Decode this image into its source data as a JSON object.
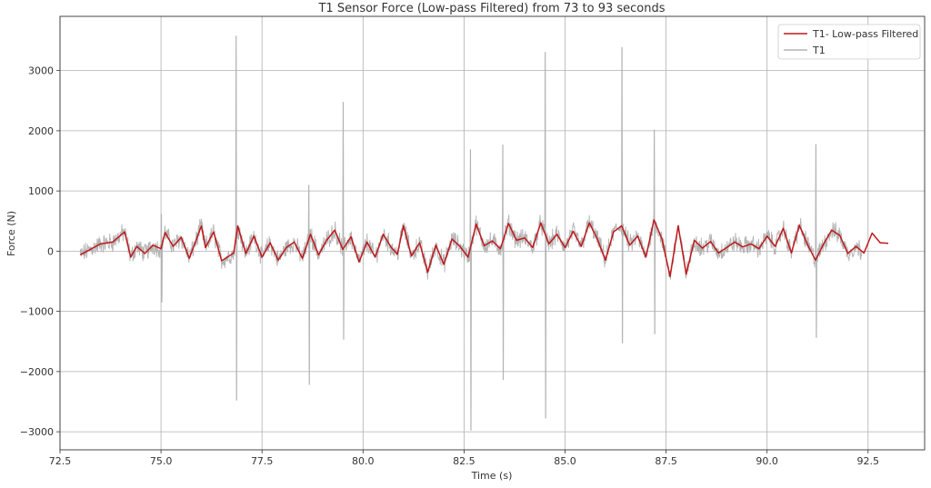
{
  "chart_data": {
    "type": "line",
    "title": "T1 Sensor Force (Low-pass Filtered) from 73 to 93 seconds",
    "xlabel": "Time (s)",
    "ylabel": "Force (N)",
    "xlim": [
      72.5,
      93.9
    ],
    "ylim": [
      -3300,
      3900
    ],
    "grid": true,
    "legend_position": "top-right",
    "x_ticks": [
      72.5,
      75.0,
      77.5,
      80.0,
      82.5,
      85.0,
      87.5,
      90.0,
      92.5
    ],
    "x_tick_labels": [
      "72.5",
      "75.0",
      "77.5",
      "80.0",
      "82.5",
      "85.0",
      "87.5",
      "90.0",
      "92.5"
    ],
    "y_ticks": [
      -3000,
      -2000,
      -1000,
      0,
      1000,
      2000,
      3000
    ],
    "y_tick_labels": [
      "−3000",
      "−2000",
      "−1000",
      "0",
      "1000",
      "2000",
      "3000"
    ],
    "series": [
      {
        "name": "T1- Low-pass Filtered",
        "color": "#c0181c",
        "x": [
          73.0,
          73.2,
          73.5,
          73.8,
          74.1,
          74.25,
          74.4,
          74.6,
          74.8,
          75.0,
          75.1,
          75.3,
          75.5,
          75.7,
          75.85,
          76.0,
          76.1,
          76.3,
          76.5,
          76.8,
          76.9,
          77.1,
          77.3,
          77.5,
          77.7,
          77.9,
          78.1,
          78.3,
          78.5,
          78.7,
          78.9,
          79.1,
          79.3,
          79.5,
          79.7,
          79.9,
          80.1,
          80.3,
          80.5,
          80.7,
          80.85,
          81.0,
          81.2,
          81.4,
          81.6,
          81.8,
          82.0,
          82.2,
          82.4,
          82.6,
          82.8,
          83.0,
          83.2,
          83.4,
          83.6,
          83.8,
          84.0,
          84.2,
          84.4,
          84.6,
          84.8,
          85.0,
          85.2,
          85.4,
          85.6,
          85.8,
          86.0,
          86.2,
          86.4,
          86.6,
          86.8,
          87.0,
          87.2,
          87.4,
          87.6,
          87.8,
          88.0,
          88.2,
          88.4,
          88.6,
          88.8,
          89.0,
          89.2,
          89.4,
          89.6,
          89.8,
          90.0,
          90.2,
          90.4,
          90.6,
          90.8,
          91.0,
          91.2,
          91.4,
          91.6,
          91.8,
          92.0,
          92.2,
          92.4,
          92.6,
          92.8,
          93.0
        ],
        "y": [
          -60,
          10,
          120,
          150,
          320,
          -100,
          80,
          -40,
          100,
          40,
          310,
          80,
          230,
          -120,
          150,
          420,
          60,
          320,
          -160,
          -30,
          420,
          -40,
          250,
          -100,
          140,
          -150,
          60,
          150,
          -120,
          280,
          -60,
          180,
          350,
          30,
          240,
          -180,
          150,
          -100,
          280,
          60,
          -50,
          420,
          -80,
          140,
          -350,
          100,
          -220,
          200,
          80,
          -100,
          450,
          90,
          170,
          40,
          460,
          180,
          220,
          60,
          470,
          120,
          280,
          60,
          330,
          80,
          470,
          200,
          -150,
          320,
          420,
          100,
          250,
          -100,
          520,
          200,
          -420,
          420,
          -380,
          180,
          50,
          160,
          -30,
          60,
          150,
          70,
          120,
          40,
          250,
          80,
          380,
          -30,
          430,
          110,
          -150,
          120,
          350,
          260,
          -40,
          80,
          -30,
          300,
          140,
          130
        ]
      },
      {
        "name": "T1",
        "color": "#b3b3b3",
        "spikes": [
          {
            "t": 75.0,
            "max": 620,
            "min": -850
          },
          {
            "t": 76.85,
            "max": 3580,
            "min": -2480
          },
          {
            "t": 78.65,
            "max": 1100,
            "min": -2220
          },
          {
            "t": 79.5,
            "max": 2480,
            "min": -1470
          },
          {
            "t": 82.65,
            "max": 1690,
            "min": -2980
          },
          {
            "t": 83.45,
            "max": 1770,
            "min": -2140
          },
          {
            "t": 84.5,
            "max": 3310,
            "min": -2780
          },
          {
            "t": 86.4,
            "max": 3390,
            "min": -1530
          },
          {
            "t": 87.2,
            "max": 2020,
            "min": -1380
          },
          {
            "t": 91.2,
            "max": 1780,
            "min": -1440
          }
        ]
      }
    ]
  }
}
